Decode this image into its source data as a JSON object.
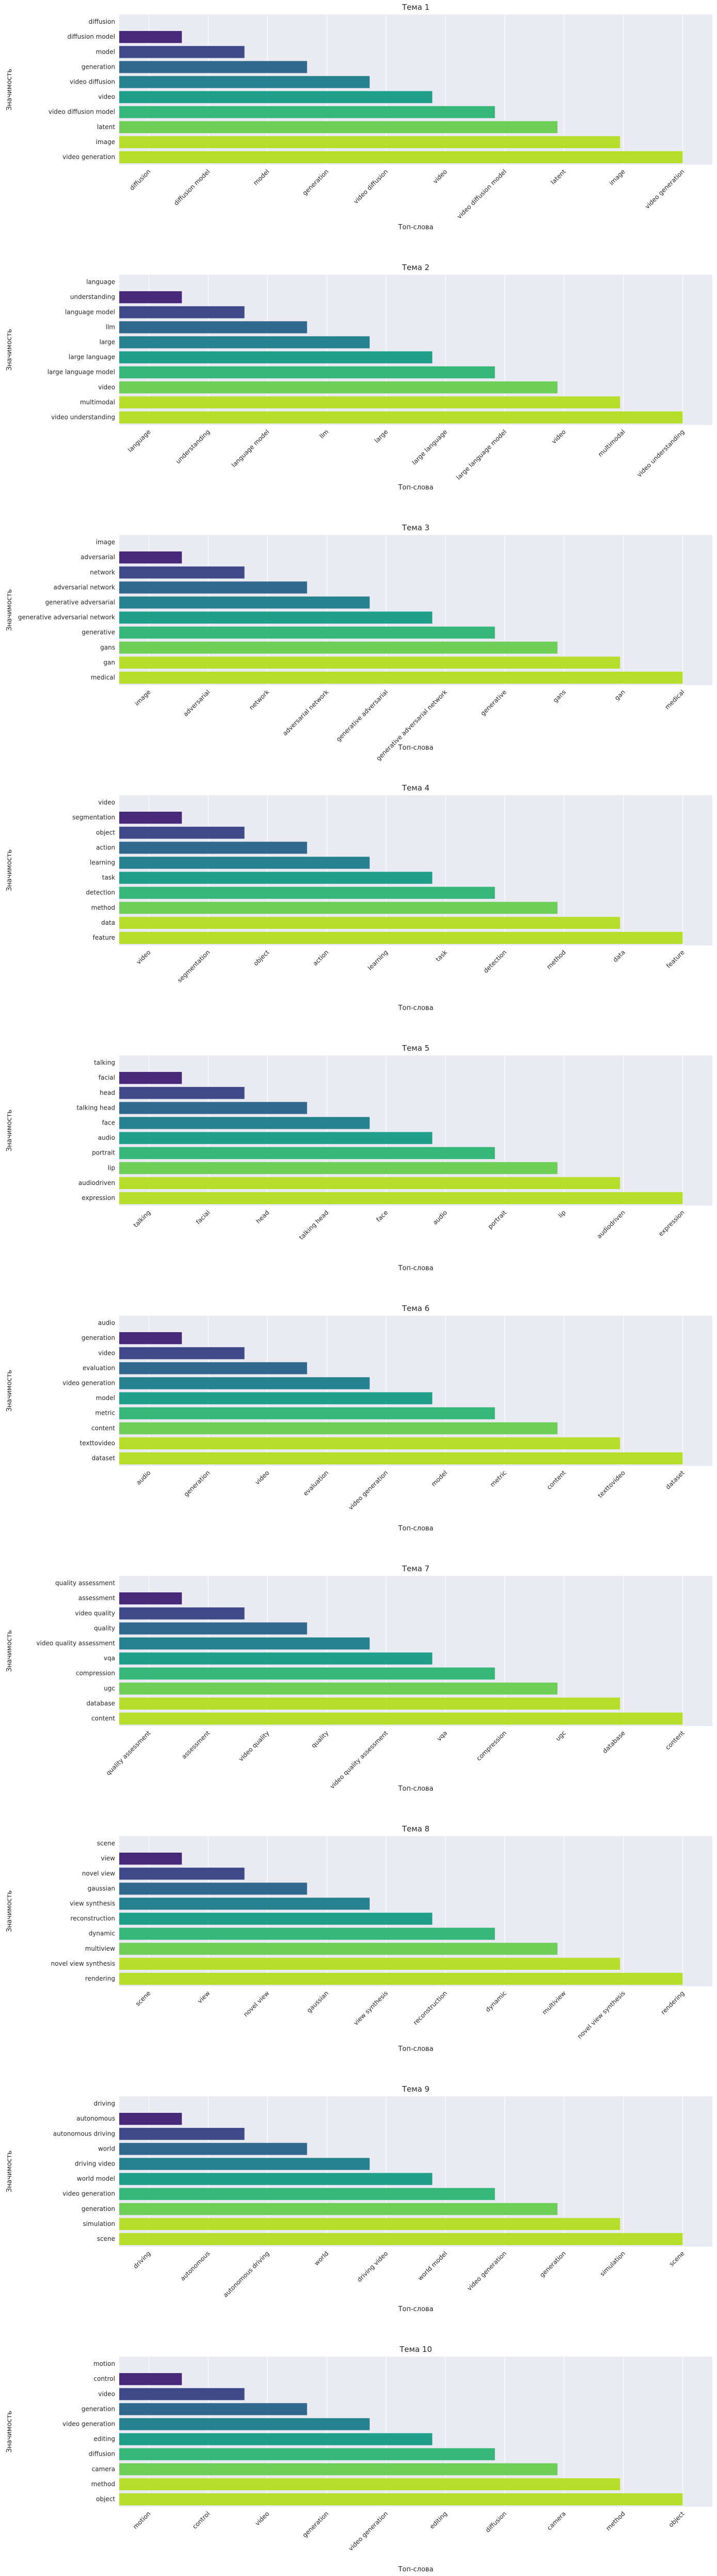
{
  "palette": [
    "#482878",
    "#3e4989",
    "#31688e",
    "#26828e",
    "#1f9e89",
    "#35b779",
    "#6ece58",
    "#b5de2b"
  ],
  "background": "#eaeaf2",
  "chart_data": [
    {
      "type": "bar",
      "title": "Тема 1",
      "xlabel": "Топ-слова",
      "ylabel": "Значимость",
      "categories": [
        "diffusion",
        "diffusion model",
        "model",
        "generation",
        "video diffusion",
        "video",
        "video diffusion model",
        "latent",
        "image",
        "video generation"
      ],
      "values": [
        0,
        1,
        2,
        3,
        4,
        5,
        6,
        7,
        8,
        9
      ]
    },
    {
      "type": "bar",
      "title": "Тема 2",
      "xlabel": "Топ-слова",
      "ylabel": "Значимость",
      "categories": [
        "language",
        "understanding",
        "language model",
        "llm",
        "large",
        "large language",
        "large language model",
        "video",
        "multimodal",
        "video understanding"
      ],
      "values": [
        0,
        1,
        2,
        3,
        4,
        5,
        6,
        7,
        8,
        9
      ]
    },
    {
      "type": "bar",
      "title": "Тема 3",
      "xlabel": "Топ-слова",
      "ylabel": "Значимость",
      "categories": [
        "image",
        "adversarial",
        "network",
        "adversarial network",
        "generative adversarial",
        "generative adversarial network",
        "generative",
        "gans",
        "gan",
        "medical"
      ],
      "values": [
        0,
        1,
        2,
        3,
        4,
        5,
        6,
        7,
        8,
        9
      ]
    },
    {
      "type": "bar",
      "title": "Тема 4",
      "xlabel": "Топ-слова",
      "ylabel": "Значимость",
      "categories": [
        "video",
        "segmentation",
        "object",
        "action",
        "learning",
        "task",
        "detection",
        "method",
        "data",
        "feature"
      ],
      "values": [
        0,
        1,
        2,
        3,
        4,
        5,
        6,
        7,
        8,
        9
      ]
    },
    {
      "type": "bar",
      "title": "Тема 5",
      "xlabel": "Топ-слова",
      "ylabel": "Значимость",
      "categories": [
        "talking",
        "facial",
        "head",
        "talking head",
        "face",
        "audio",
        "portrait",
        "lip",
        "audiodriven",
        "expression"
      ],
      "values": [
        0,
        1,
        2,
        3,
        4,
        5,
        6,
        7,
        8,
        9
      ]
    },
    {
      "type": "bar",
      "title": "Тема 6",
      "xlabel": "Топ-слова",
      "ylabel": "Значимость",
      "categories": [
        "audio",
        "generation",
        "video",
        "evaluation",
        "video generation",
        "model",
        "metric",
        "content",
        "texttovideo",
        "dataset"
      ],
      "values": [
        0,
        1,
        2,
        3,
        4,
        5,
        6,
        7,
        8,
        9
      ]
    },
    {
      "type": "bar",
      "title": "Тема 7",
      "xlabel": "Топ-слова",
      "ylabel": "Значимость",
      "categories": [
        "quality assessment",
        "assessment",
        "video quality",
        "quality",
        "video quality assessment",
        "vqa",
        "compression",
        "ugc",
        "database",
        "content"
      ],
      "values": [
        0,
        1,
        2,
        3,
        4,
        5,
        6,
        7,
        8,
        9
      ]
    },
    {
      "type": "bar",
      "title": "Тема 8",
      "xlabel": "Топ-слова",
      "ylabel": "Значимость",
      "categories": [
        "scene",
        "view",
        "novel view",
        "gaussian",
        "view synthesis",
        "reconstruction",
        "dynamic",
        "multiview",
        "novel view synthesis",
        "rendering"
      ],
      "values": [
        0,
        1,
        2,
        3,
        4,
        5,
        6,
        7,
        8,
        9
      ]
    },
    {
      "type": "bar",
      "title": "Тема 9",
      "xlabel": "Топ-слова",
      "ylabel": "Значимость",
      "categories": [
        "driving",
        "autonomous",
        "autonomous driving",
        "world",
        "driving video",
        "world model",
        "video generation",
        "generation",
        "simulation",
        "scene"
      ],
      "values": [
        0,
        1,
        2,
        3,
        4,
        5,
        6,
        7,
        8,
        9
      ]
    },
    {
      "type": "bar",
      "title": "Тема 10",
      "xlabel": "Топ-слова",
      "ylabel": "Значимость",
      "categories": [
        "motion",
        "control",
        "video",
        "generation",
        "video generation",
        "editing",
        "diffusion",
        "camera",
        "method",
        "object"
      ],
      "values": [
        0,
        1,
        2,
        3,
        4,
        5,
        6,
        7,
        8,
        9
      ]
    }
  ]
}
